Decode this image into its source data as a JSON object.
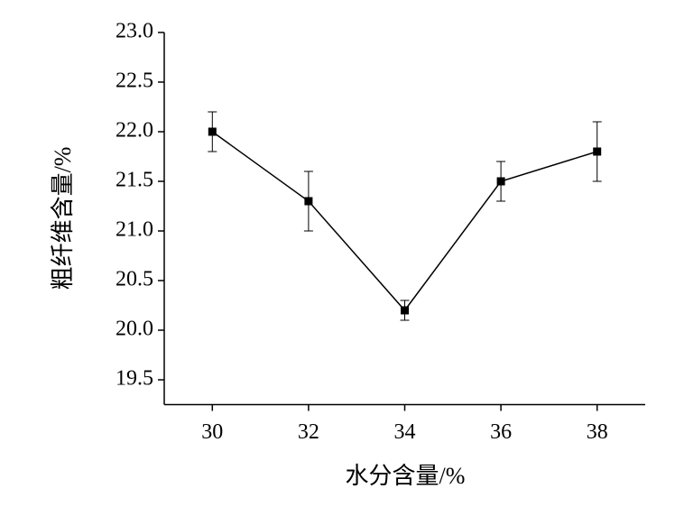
{
  "chart_data": {
    "type": "line",
    "x_label": "水分含量/%",
    "y_label": "粗纤维含量/%",
    "x": [
      30,
      32,
      34,
      36,
      38
    ],
    "series": [
      {
        "name": "粗纤维含量",
        "color": "#000000",
        "values": [
          22.0,
          21.3,
          20.2,
          21.5,
          21.8
        ],
        "errors": [
          0.2,
          0.3,
          0.1,
          0.2,
          0.3
        ]
      }
    ],
    "xlim": [
      29,
      39
    ],
    "xticks": [
      30,
      32,
      34,
      36,
      38
    ],
    "ylim": [
      19.25,
      23.0
    ],
    "yticks": [
      {
        "value": 19.5,
        "label": "19.5"
      },
      {
        "value": 20.0,
        "label": "20.0"
      },
      {
        "value": 20.5,
        "label": "20.5"
      },
      {
        "value": 21.0,
        "label": "21.0"
      },
      {
        "value": 21.5,
        "label": "21.5"
      },
      {
        "value": 22.0,
        "label": "22.0"
      },
      {
        "value": 22.5,
        "label": "22.5"
      },
      {
        "value": 23.0,
        "label": "23.0"
      }
    ],
    "grid": false
  }
}
